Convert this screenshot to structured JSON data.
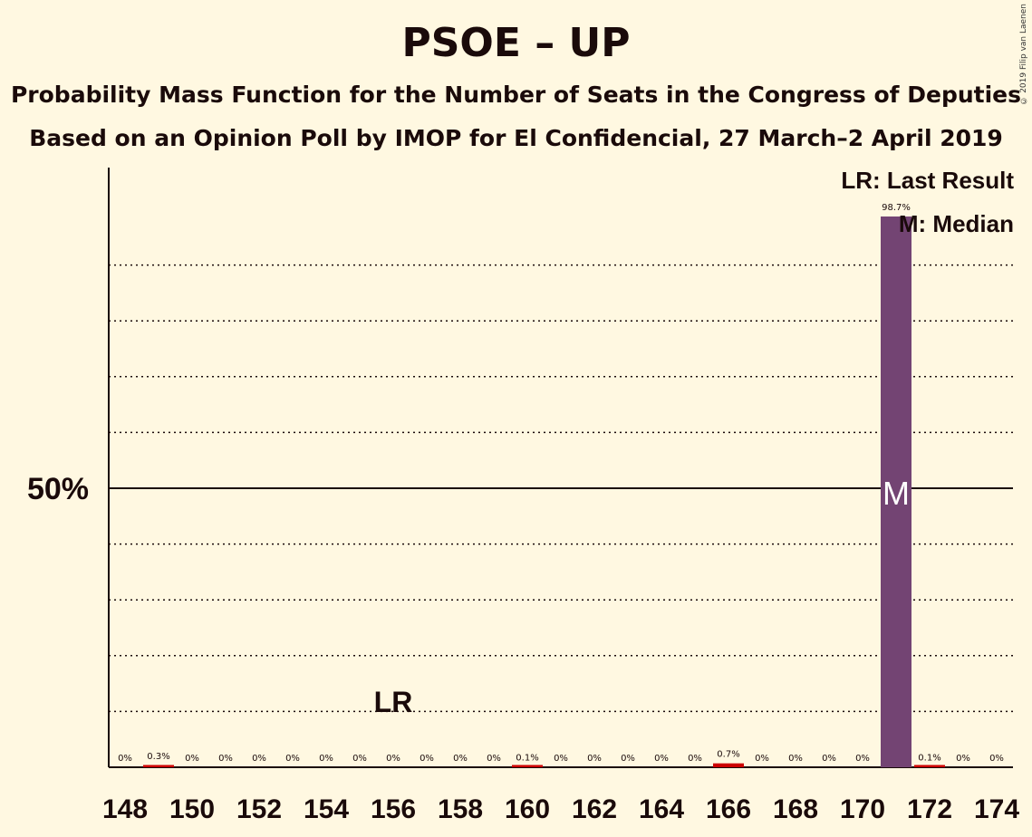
{
  "title": "PSOE – UP",
  "subtitle_1": "Probability Mass Function for the Number of Seats in the Congress of Deputies",
  "subtitle_2": "Based on an Opinion Poll by IMOP for El Confidencial, 27 March–2 April 2019",
  "copyright": "© 2019 Filip van Laenen",
  "legend": {
    "last_result": "LR: Last Result",
    "median": "M: Median"
  },
  "colors": {
    "background": "#fff8e1",
    "bar": "#734473",
    "last_result_bar": "#cc0000",
    "axis": "#1a0a0a"
  },
  "chart_data": {
    "type": "bar",
    "x": [
      148,
      149,
      150,
      151,
      152,
      153,
      154,
      155,
      156,
      157,
      158,
      159,
      160,
      161,
      162,
      163,
      164,
      165,
      166,
      167,
      168,
      169,
      170,
      171,
      172,
      173,
      174
    ],
    "values": [
      0,
      0.3,
      0,
      0,
      0,
      0,
      0,
      0,
      0,
      0,
      0,
      0,
      0.1,
      0,
      0,
      0,
      0,
      0,
      0.7,
      0,
      0,
      0,
      0,
      98.7,
      0.1,
      0,
      0
    ],
    "data_labels": [
      "0%",
      "0.3%",
      "0%",
      "0%",
      "0%",
      "0%",
      "0%",
      "0%",
      "0%",
      "0%",
      "0%",
      "0%",
      "0.1%",
      "0%",
      "0%",
      "0%",
      "0%",
      "0%",
      "0.7%",
      "0%",
      "0%",
      "0%",
      "0%",
      "98.7%",
      "0.1%",
      "0%",
      "0%"
    ],
    "x_tick_labels": [
      "148",
      "150",
      "152",
      "154",
      "156",
      "158",
      "160",
      "162",
      "164",
      "166",
      "168",
      "170",
      "172",
      "174"
    ],
    "y_tick_label": "50%",
    "ylim": [
      0,
      107
    ],
    "last_result": 156,
    "last_result_label": "LR",
    "median": 171,
    "median_label": "M",
    "grid": "dotted every 10%, solid at 50%"
  }
}
